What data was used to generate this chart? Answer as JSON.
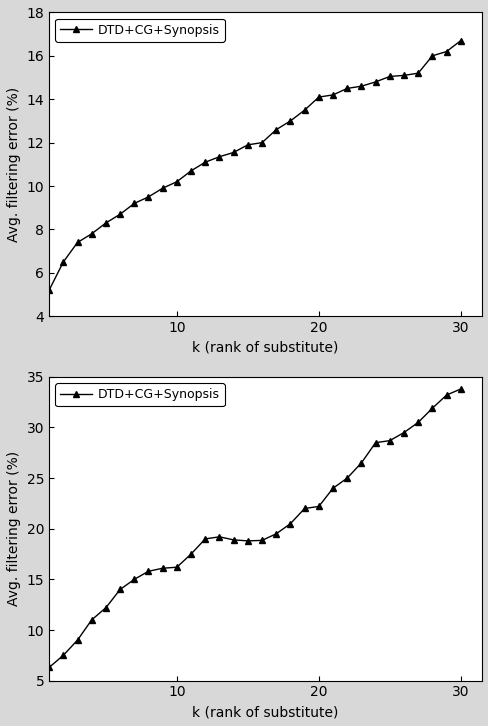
{
  "top_chart": {
    "xlabel": "k (rank of substitute)",
    "ylabel": "Avg. filtering error (%)",
    "legend_label": "DTD+CG+Synopsis",
    "xlim": [
      1,
      31.5
    ],
    "ylim": [
      4,
      18
    ],
    "yticks": [
      4,
      6,
      8,
      10,
      12,
      14,
      16,
      18
    ],
    "xticks": [
      10,
      20,
      30
    ],
    "x": [
      1,
      2,
      3,
      4,
      5,
      6,
      7,
      8,
      9,
      10,
      11,
      12,
      13,
      14,
      15,
      16,
      17,
      18,
      19,
      20,
      21,
      22,
      23,
      24,
      25,
      26,
      27,
      28,
      29,
      30
    ],
    "y": [
      5.2,
      6.5,
      7.4,
      7.8,
      8.3,
      8.7,
      9.2,
      9.5,
      9.9,
      10.2,
      10.7,
      11.1,
      11.35,
      11.55,
      11.9,
      12.0,
      12.6,
      13.0,
      13.5,
      14.1,
      14.2,
      14.5,
      14.6,
      14.8,
      15.05,
      15.1,
      15.2,
      16.0,
      16.2,
      16.7
    ]
  },
  "bottom_chart": {
    "xlabel": "k (rank of substitute)",
    "ylabel": "Avg. filtering error (%)",
    "legend_label": "DTD+CG+Synopsis",
    "xlim": [
      1,
      31.5
    ],
    "ylim": [
      5,
      35
    ],
    "yticks": [
      5,
      10,
      15,
      20,
      25,
      30,
      35
    ],
    "xticks": [
      10,
      20,
      30
    ],
    "x": [
      1,
      2,
      3,
      4,
      5,
      6,
      7,
      8,
      9,
      10,
      11,
      12,
      13,
      14,
      15,
      16,
      17,
      18,
      19,
      20,
      21,
      22,
      23,
      24,
      25,
      26,
      27,
      28,
      29,
      30
    ],
    "y": [
      6.3,
      7.5,
      9.0,
      11.0,
      12.2,
      14.0,
      15.0,
      15.8,
      16.1,
      16.2,
      17.5,
      19.0,
      19.2,
      18.9,
      18.8,
      18.85,
      19.5,
      20.5,
      22.0,
      22.2,
      24.0,
      25.0,
      26.5,
      28.5,
      28.7,
      29.5,
      30.5,
      31.9,
      33.2,
      33.8
    ]
  },
  "line_color": "#000000",
  "marker": "^",
  "marker_size": 4,
  "line_width": 1.0,
  "font_size": 10,
  "legend_font_size": 9,
  "tick_font_size": 10,
  "fig_facecolor": "#d8d8d8",
  "ax_facecolor": "#ffffff"
}
